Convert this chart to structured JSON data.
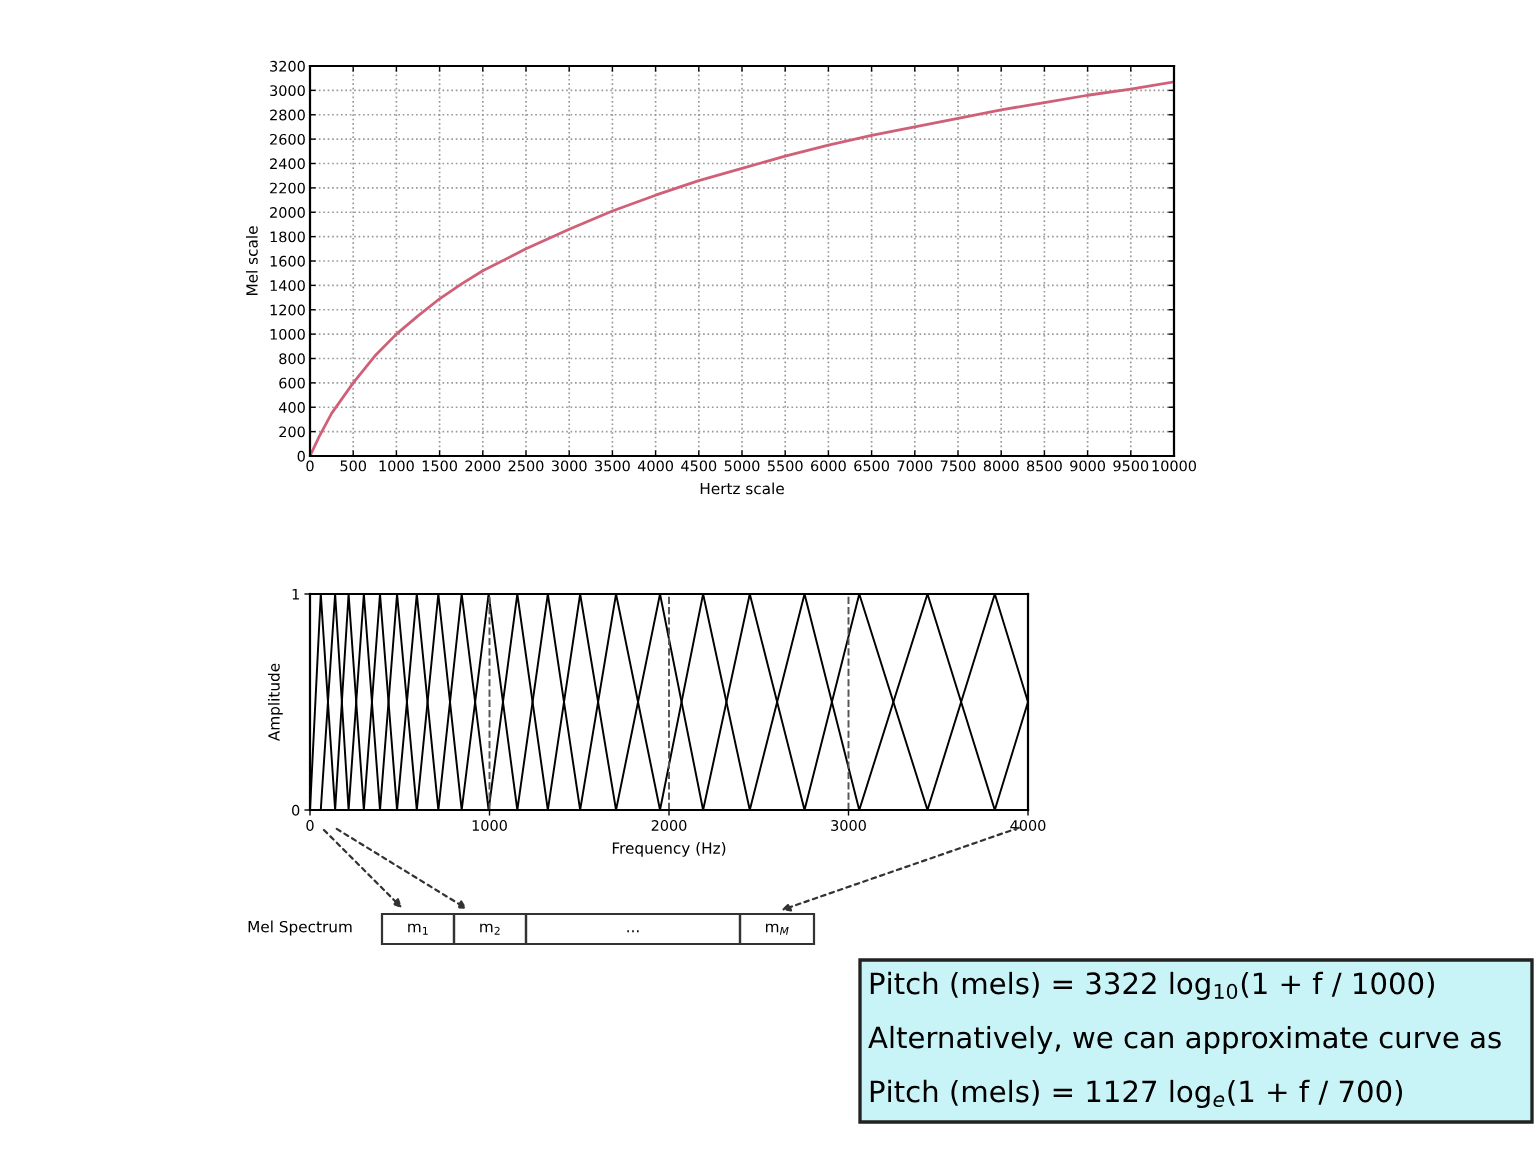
{
  "chart_data": [
    {
      "type": "line",
      "xlabel": "Hertz scale",
      "ylabel": "Mel scale",
      "x": [
        0,
        100,
        250,
        500,
        750,
        1000,
        1250,
        1500,
        1750,
        2000,
        2500,
        3000,
        3500,
        4000,
        4500,
        5000,
        5500,
        6000,
        6500,
        7000,
        7500,
        8000,
        8500,
        9000,
        9500,
        10000
      ],
      "series": [
        {
          "color": "#d06078",
          "values": [
            0,
            150,
            350,
            600,
            820,
            1000,
            1150,
            1290,
            1410,
            1520,
            1700,
            1860,
            2010,
            2140,
            2260,
            2360,
            2460,
            2550,
            2630,
            2700,
            2770,
            2840,
            2900,
            2960,
            3010,
            3070
          ]
        }
      ],
      "xlim": [
        0,
        10000
      ],
      "xticks": [
        0,
        500,
        1000,
        1500,
        2000,
        2500,
        3000,
        3500,
        4000,
        4500,
        5000,
        5500,
        6000,
        6500,
        7000,
        7500,
        8000,
        8500,
        9000,
        9500,
        10000
      ],
      "ylim": [
        0,
        3200
      ],
      "yticks": [
        0,
        200,
        400,
        600,
        800,
        1000,
        1200,
        1400,
        1600,
        1800,
        2000,
        2200,
        2400,
        2600,
        2800,
        3000,
        3200
      ],
      "grid": true,
      "legend": false,
      "marker": "none",
      "line_style": "solid"
    },
    {
      "type": "line",
      "xlabel": "Frequency (Hz)",
      "ylabel": "Amplitude",
      "series": [
        {
          "color": "#000000",
          "x": [
            0,
            60,
            140,
            215,
            300,
            390,
            485,
            595,
            715,
            845,
            995,
            1155,
            1325,
            1505,
            1705,
            1950,
            2190,
            2450,
            2755,
            3060,
            3440,
            3815,
            4000
          ],
          "values": [
            0,
            1,
            0,
            1,
            0,
            1,
            0,
            1,
            0,
            1,
            0,
            1,
            0,
            1,
            0,
            1,
            0,
            1,
            0,
            1,
            0,
            1,
            0.5
          ]
        },
        {
          "color": "#000000",
          "x": [
            60,
            140,
            215,
            300,
            390,
            485,
            595,
            715,
            845,
            995,
            1155,
            1325,
            1505,
            1705,
            1950,
            2190,
            2450,
            2755,
            3060,
            3440,
            3815,
            4000
          ],
          "values": [
            0,
            1,
            0,
            1,
            0,
            1,
            0,
            1,
            0,
            1,
            0,
            1,
            0,
            1,
            0,
            1,
            0,
            1,
            0,
            1,
            0,
            0.5
          ]
        }
      ],
      "xlim": [
        0,
        4000
      ],
      "xticks": [
        0,
        1000,
        2000,
        3000,
        4000
      ],
      "ylim": [
        0,
        1
      ],
      "yticks": [
        0,
        1
      ],
      "ref_lines": [
        {
          "axis": "x",
          "value": 1000,
          "line_style": "dashed",
          "color": "#555555"
        },
        {
          "axis": "x",
          "value": 2000,
          "line_style": "dashed",
          "color": "#555555"
        },
        {
          "axis": "x",
          "value": 3000,
          "line_style": "dashed",
          "color": "#555555"
        }
      ],
      "grid": false,
      "legend": false,
      "marker": "none",
      "line_style": "solid",
      "annotations": [
        "Mel Spectrum",
        "m$_{1}$",
        "m$_{2}$",
        "...",
        "m$_{M}$",
        "Pitch (mels) = 3322 log$_{10}$(1 + f / 1000)",
        "Alternatively, we can approximate curve as",
        "Pitch (mels) = 1127 log$_{e}$(1 + f / 700)"
      ]
    }
  ]
}
